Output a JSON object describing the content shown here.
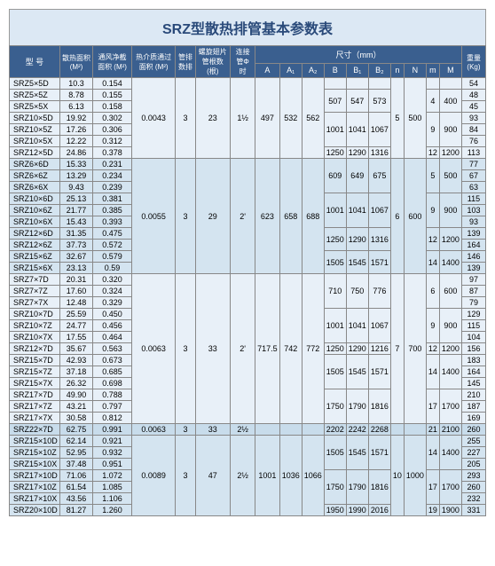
{
  "title": "SRZ型散热排管基本参数表",
  "headers": {
    "model": "型 号",
    "area": "散热面积 (M²)",
    "netArea": "通风净截面积 (M²)",
    "hotArea": "热介质通过面积 (M²)",
    "rows": "管排数排",
    "fins": "螺旋翅片管根数(根)",
    "connPipe": "连接管Φ 时",
    "dims": "尺寸（mm）",
    "weight": "重量 (Kg)",
    "A": "A",
    "A1": "A₁",
    "A2": "A₂",
    "B": "B",
    "B1": "B₁",
    "B2": "B₂",
    "n": "n",
    "N": "N",
    "m": "m",
    "M": "M"
  },
  "rows": [
    {
      "g": 1,
      "m": "SRZ5×5D",
      "a": "10.3",
      "na": "0.154",
      "ha": "0.0043",
      "r": "3",
      "f": "23",
      "cp": "1½",
      "A": "497",
      "A1": "532",
      "A2": "562",
      "B": "",
      "B1": "",
      "B2": "",
      "n": "5",
      "N": "500",
      "mm": "",
      "M": "",
      "w": "54",
      "haS": 1,
      "cpS": 1
    },
    {
      "g": 1,
      "m": "SRZ5×5Z",
      "a": "8.78",
      "na": "0.155",
      "w": "48",
      "B": "507",
      "B1": "547",
      "B2": "573",
      "mm": "4",
      "M": "400",
      "bS": 1,
      "mS": 1
    },
    {
      "g": 1,
      "m": "SRZ5×5X",
      "a": "6.13",
      "na": "0.158",
      "w": "45"
    },
    {
      "g": 1,
      "m": "SRZ10×5D",
      "a": "19.92",
      "na": "0.302",
      "w": "93",
      "B": "1001",
      "B1": "1041",
      "B2": "1067",
      "mm": "9",
      "M": "900",
      "bS": 1,
      "mS": 1
    },
    {
      "g": 1,
      "m": "SRZ10×5Z",
      "a": "17.26",
      "na": "0.306",
      "w": "84"
    },
    {
      "g": 1,
      "m": "SRZ10×5X",
      "a": "12.22",
      "na": "0.312",
      "w": "76"
    },
    {
      "g": 1,
      "m": "SRZ12×5D",
      "a": "24.86",
      "na": "0.378",
      "w": "113",
      "B": "1250",
      "B1": "1290",
      "B2": "1316",
      "mm": "12",
      "M": "1200",
      "bS": 1,
      "mS": 1
    },
    {
      "g": 2,
      "m": "SRZ6×6D",
      "a": "15.33",
      "na": "0.231",
      "ha": "0.0055",
      "r": "3",
      "f": "29",
      "cp": "2'",
      "A": "623",
      "A1": "658",
      "A2": "688",
      "n": "6",
      "N": "600",
      "w": "77",
      "haS": 1,
      "cpS": 1,
      "B": "609",
      "B1": "649",
      "B2": "675",
      "mm": "5",
      "M": "500",
      "bS": 1,
      "mS": 1
    },
    {
      "g": 2,
      "m": "SRZ6×6Z",
      "a": "13.29",
      "na": "0.234",
      "w": "67"
    },
    {
      "g": 2,
      "m": "SRZ6×6X",
      "a": "9.43",
      "na": "0.239",
      "w": "63"
    },
    {
      "g": 2,
      "m": "SRZ10×6D",
      "a": "25.13",
      "na": "0.381",
      "w": "115",
      "B": "1001",
      "B1": "1041",
      "B2": "1067",
      "mm": "9",
      "M": "900",
      "bS": 1,
      "mS": 1
    },
    {
      "g": 2,
      "m": "SRZ10×6Z",
      "a": "21.77",
      "na": "0.385",
      "w": "103"
    },
    {
      "g": 2,
      "m": "SRZ10×6X",
      "a": "15.43",
      "na": "0.393",
      "w": "93"
    },
    {
      "g": 2,
      "m": "SRZ12×6D",
      "a": "31.35",
      "na": "0.475",
      "w": "139",
      "B": "1250",
      "B1": "1290",
      "B2": "1316",
      "mm": "12",
      "M": "1200",
      "bS": 1,
      "mS": 1
    },
    {
      "g": 2,
      "m": "SRZ12×6Z",
      "a": "37.73",
      "na": "0.572",
      "w": "164"
    },
    {
      "g": 2,
      "m": "SRZ15×6Z",
      "a": "32.67",
      "na": "0.579",
      "w": "146",
      "B": "1505",
      "B1": "1545",
      "B2": "1571",
      "mm": "14",
      "M": "1400",
      "bS": 1,
      "mS": 1
    },
    {
      "g": 2,
      "m": "SRZ15×6X",
      "a": "23.13",
      "na": "0.59",
      "w": "139"
    },
    {
      "g": 1,
      "m": "SRZ7×7D",
      "a": "20.31",
      "na": "0.320",
      "ha": "0.0063",
      "r": "3",
      "f": "33",
      "cp": "2'",
      "A": "717.5",
      "A1": "742",
      "A2": "772",
      "n": "7",
      "N": "700",
      "w": "97",
      "haS": 1,
      "cpS": 1,
      "B": "710",
      "B1": "750",
      "B2": "776",
      "mm": "6",
      "M": "600",
      "bS": 1,
      "mS": 1
    },
    {
      "g": 1,
      "m": "SRZ7×7Z",
      "a": "17.60",
      "na": "0.324",
      "w": "87"
    },
    {
      "g": 1,
      "m": "SRZ7×7X",
      "a": "12.48",
      "na": "0.329",
      "w": "79"
    },
    {
      "g": 1,
      "m": "SRZ10×7D",
      "a": "25.59",
      "na": "0.450",
      "w": "129",
      "B": "1001",
      "B1": "1041",
      "B2": "1067",
      "mm": "9",
      "M": "900",
      "bS": 1,
      "mS": 1
    },
    {
      "g": 1,
      "m": "SRZ10×7Z",
      "a": "24.77",
      "na": "0.456",
      "w": "115"
    },
    {
      "g": 1,
      "m": "SRZ10×7X",
      "a": "17.55",
      "na": "0.464",
      "w": "104"
    },
    {
      "g": 1,
      "m": "SRZ12×7D",
      "a": "35.67",
      "na": "0.563",
      "w": "156",
      "B": "1250",
      "B1": "1290",
      "B2": "1216",
      "mm": "12",
      "M": "1200",
      "bS": 1,
      "mS": 1
    },
    {
      "g": 1,
      "m": "SRZ15×7D",
      "a": "42.93",
      "na": "0.673",
      "w": "183",
      "B": "1505",
      "B1": "1545",
      "B2": "1571",
      "mm": "14",
      "M": "1400",
      "bS": 1,
      "mS": 1
    },
    {
      "g": 1,
      "m": "SRZ15×7Z",
      "a": "37.18",
      "na": "0.685",
      "w": "164"
    },
    {
      "g": 1,
      "m": "SRZ15×7X",
      "a": "26.32",
      "na": "0.698",
      "w": "145"
    },
    {
      "g": 1,
      "m": "SRZ17×7D",
      "a": "49.90",
      "na": "0.788",
      "w": "210",
      "B": "1750",
      "B1": "1790",
      "B2": "1816",
      "mm": "17",
      "M": "1700",
      "bS": 1,
      "mS": 1
    },
    {
      "g": 1,
      "m": "SRZ17×7Z",
      "a": "43.21",
      "na": "0.797",
      "w": "187"
    },
    {
      "g": 1,
      "m": "SRZ17×7X",
      "a": "30.58",
      "na": "0.812",
      "w": "169"
    },
    {
      "g": 3,
      "m": "SRZ22×7D",
      "a": "62.75",
      "na": "0.991",
      "ha": "0.0063",
      "r": "3",
      "f": "33",
      "cp": "2½",
      "B": "2202",
      "B1": "2242",
      "B2": "2268",
      "mm": "21",
      "M": "2100",
      "w": "260",
      "haS": 2,
      "cpS": 2,
      "bS": 2,
      "mS": 2
    },
    {
      "g": 2,
      "m": "SRZ15×10D",
      "a": "62.14",
      "na": "0.921",
      "ha": "0.0089",
      "r": "3",
      "f": "47",
      "cp": "2½",
      "A": "1001",
      "A1": "1036",
      "A2": "1066",
      "n": "10",
      "N": "1000",
      "w": "255",
      "haS": 1,
      "cpS": 1,
      "B": "1505",
      "B1": "1545",
      "B2": "1571",
      "mm": "14",
      "M": "1400",
      "bS": 1,
      "mS": 1
    },
    {
      "g": 2,
      "m": "SRZ15×10Z",
      "a": "52.95",
      "na": "0.932",
      "w": "227"
    },
    {
      "g": 2,
      "m": "SRZ15×10X",
      "a": "37.48",
      "na": "0.951",
      "w": "205"
    },
    {
      "g": 2,
      "m": "SRZ17×10D",
      "a": "71.06",
      "na": "1.072",
      "w": "293",
      "B": "1750",
      "B1": "1790",
      "B2": "1816",
      "mm": "17",
      "M": "1700",
      "bS": 1,
      "mS": 1
    },
    {
      "g": 2,
      "m": "SRZ17×10Z",
      "a": "61.54",
      "na": "1.085",
      "w": "260"
    },
    {
      "g": 2,
      "m": "SRZ17×10X",
      "a": "43.56",
      "na": "1.106",
      "w": "232"
    },
    {
      "g": 2,
      "m": "SRZ20×10D",
      "a": "81.27",
      "na": "1.260",
      "w": "331",
      "B": "1950",
      "B1": "1990",
      "B2": "2016",
      "mm": "19",
      "M": "1900",
      "bS": 2,
      "mS": 2
    }
  ]
}
